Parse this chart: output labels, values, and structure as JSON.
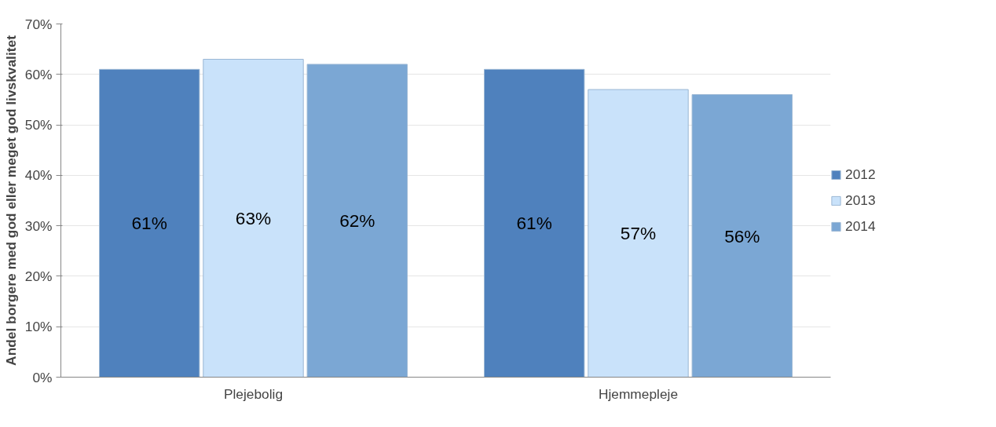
{
  "chart_data": {
    "type": "bar",
    "ylabel": "Andel borgere med god eller meget god livskvalitet",
    "categories": [
      "Plejebolig",
      "Hjemmepleje"
    ],
    "series": [
      {
        "name": "2012",
        "color": "#4f81bd",
        "values": [
          61,
          61
        ],
        "value_labels": [
          "61%",
          "61%"
        ]
      },
      {
        "name": "2013",
        "color": "#c9e2fa",
        "values": [
          63,
          57
        ],
        "value_labels": [
          "63%",
          "57%"
        ]
      },
      {
        "name": "2014",
        "color": "#7ba7d4",
        "values": [
          62,
          56
        ],
        "value_labels": [
          "62%",
          "56%"
        ]
      }
    ],
    "ylim": [
      0,
      70
    ],
    "yticks": [
      {
        "value": 0,
        "label": "0%"
      },
      {
        "value": 10,
        "label": "10%"
      },
      {
        "value": 20,
        "label": "20%"
      },
      {
        "value": 30,
        "label": "30%"
      },
      {
        "value": 40,
        "label": "40%"
      },
      {
        "value": 50,
        "label": "50%"
      },
      {
        "value": 60,
        "label": "60%"
      },
      {
        "value": 70,
        "label": "70%"
      }
    ],
    "grid": "y",
    "legend": "right"
  }
}
